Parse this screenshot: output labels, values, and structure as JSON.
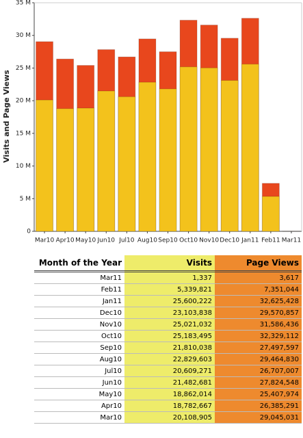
{
  "chart_data": {
    "type": "bar",
    "y_label": "Visits and Page Views",
    "categories": [
      "Mar10",
      "Apr10",
      "May10",
      "Jun10",
      "Jul10",
      "Aug10",
      "Sep10",
      "Oct10",
      "Nov10",
      "Dec10",
      "Jan11",
      "Feb11",
      "Mar11"
    ],
    "series": [
      {
        "name": "Page Views",
        "color": "#e8471d",
        "values": [
          29045031,
          26385291,
          25407974,
          27824548,
          26707007,
          29464830,
          27497597,
          32329112,
          31586436,
          29570857,
          32625428,
          7351044,
          3617
        ]
      },
      {
        "name": "Visits",
        "color": "#f3c21c",
        "values": [
          20108905,
          18782667,
          18862014,
          21482681,
          20609271,
          22829603,
          21810038,
          25183495,
          25021032,
          23103838,
          25600222,
          5339821,
          1337
        ]
      }
    ],
    "ylim": [
      0,
      35000000
    ],
    "yticks": [
      0,
      {
        "value": 5000000,
        "label": "5 M"
      },
      {
        "value": 10000000,
        "label": "10 M"
      },
      {
        "value": 15000000,
        "label": "15 M"
      },
      {
        "value": 20000000,
        "label": "20 M"
      },
      {
        "value": 25000000,
        "label": "25 M"
      },
      {
        "value": 30000000,
        "label": "30 M"
      },
      {
        "value": 35000000,
        "label": "35 M"
      }
    ],
    "grid": false
  },
  "table": {
    "month_header": "Month of the Year",
    "rows": [
      [
        "Mar11",
        "1,337",
        "3,617"
      ],
      [
        "Feb11",
        "5,339,821",
        "7,351,044"
      ],
      [
        "Jan11",
        "25,600,222",
        "32,625,428"
      ],
      [
        "Dec10",
        "23,103,838",
        "29,570,857"
      ],
      [
        "Nov10",
        "25,021,032",
        "31,586,436"
      ],
      [
        "Oct10",
        "25,183,495",
        "32,329,112"
      ],
      [
        "Sep10",
        "21,810,038",
        "27,497,597"
      ],
      [
        "Aug10",
        "22,829,603",
        "29,464,830"
      ],
      [
        "Jul10",
        "20,609,271",
        "26,707,007"
      ],
      [
        "Jun10",
        "21,482,681",
        "27,824,548"
      ],
      [
        "May10",
        "18,862,014",
        "25,407,974"
      ],
      [
        "Apr10",
        "18,782,667",
        "26,385,291"
      ],
      [
        "Mar10",
        "20,108,905",
        "29,045,031"
      ]
    ]
  }
}
